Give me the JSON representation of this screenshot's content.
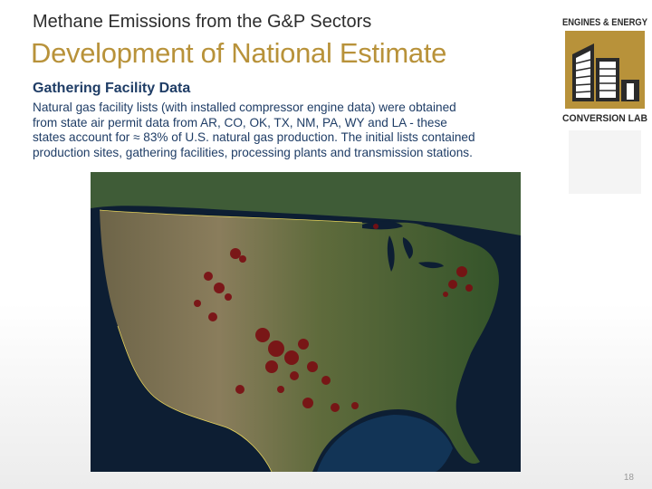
{
  "slide": {
    "subtitle": "Methane Emissions from the G&P Sectors",
    "title": "Development of National Estimate",
    "section_heading": "Gathering Facility Data",
    "body_lines": [
      "Natural gas facility lists (with installed compressor engine data) were obtained",
      "from state air permit data from AR, CO, OK, TX, NM, PA, WY and LA - these",
      "states account for ≈ 83% of U.S. natural gas production.  The initial lists contained",
      "production sites, gathering facilities, processing plants and transmission stations."
    ],
    "page_number": "18"
  },
  "logo": {
    "line1": "ENGINES & ENERGY",
    "line2": "CONVERSION LAB",
    "color": "#b8923a"
  },
  "map": {
    "label": "Satellite map of the United States showing facility locations",
    "facility_color": "#7a0d12"
  }
}
